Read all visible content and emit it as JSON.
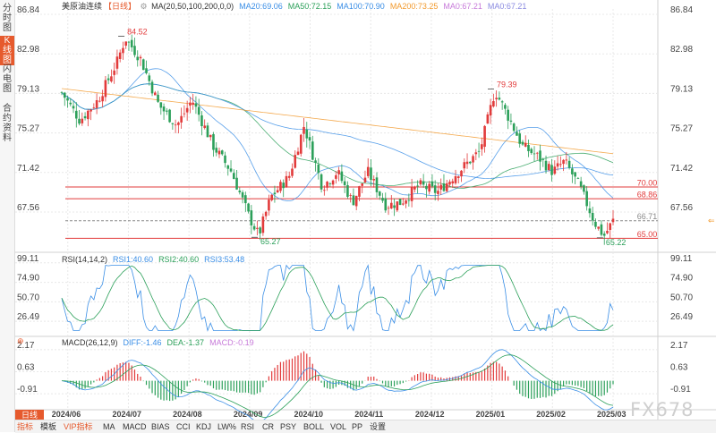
{
  "sidebar": {
    "tabs": [
      {
        "label": "分时图",
        "active": false
      },
      {
        "label": "K线图",
        "active": true
      },
      {
        "label": "闪电图",
        "active": false
      },
      {
        "label": "合约资料",
        "active": false
      }
    ]
  },
  "header": {
    "name": "美原油连续",
    "period": "日线",
    "ma_label": "MA(20,50,100,200,0,0)",
    "ma_values": [
      {
        "text": "MA20:69.06",
        "color": "#3a8ee6"
      },
      {
        "text": "MA50:72.15",
        "color": "#2ca05a"
      },
      {
        "text": "MA100:70.90",
        "color": "#3a8ee6"
      },
      {
        "text": "MA200:73.25",
        "color": "#f29a2e"
      },
      {
        "text": "MA0:67.21",
        "color": "#c77ad9"
      },
      {
        "text": "MA0:67.21",
        "color": "#8a8ae0"
      }
    ]
  },
  "rsi_header": {
    "label": "RSI(14,14,2)",
    "values": [
      {
        "text": "RSI1:40.60",
        "color": "#3a8ee6"
      },
      {
        "text": "RSI2:40.60",
        "color": "#2ca05a"
      },
      {
        "text": "RSI3:53.48",
        "color": "#3a8ee6"
      }
    ]
  },
  "macd_header": {
    "label": "MACD(26,12,9)",
    "values": [
      {
        "text": "DIFF:-1.46",
        "color": "#3a8ee6"
      },
      {
        "text": "DEA:-1.37",
        "color": "#2ca05a"
      },
      {
        "text": "MACD:-0.19",
        "color": "#c77ad9"
      }
    ]
  },
  "chart_data": {
    "type": "candlestick",
    "title": "美原油连续 日线",
    "price_axis_ticks": [
      "86.84",
      "82.98",
      "79.13",
      "75.27",
      "71.42",
      "67.56"
    ],
    "ylim": [
      64.0,
      86.84
    ],
    "x_tick_labels": [
      "2024/06",
      "2024/07",
      "2024/08",
      "2024/09",
      "2024/10",
      "2024/11",
      "2024/12",
      "2025/01",
      "2025/02",
      "2025/03"
    ],
    "price_anchors": [
      {
        "m": 0.0,
        "v": 79.2
      },
      {
        "m": 0.3,
        "v": 76.5
      },
      {
        "m": 0.6,
        "v": 78.5
      },
      {
        "m": 0.9,
        "v": 82.0
      },
      {
        "m": 1.05,
        "v": 84.52
      },
      {
        "m": 1.3,
        "v": 82.5
      },
      {
        "m": 1.6,
        "v": 78.0
      },
      {
        "m": 1.9,
        "v": 76.0
      },
      {
        "m": 2.15,
        "v": 78.5
      },
      {
        "m": 2.5,
        "v": 74.0
      },
      {
        "m": 2.8,
        "v": 71.5
      },
      {
        "m": 3.1,
        "v": 67.0
      },
      {
        "m": 3.25,
        "v": 65.27
      },
      {
        "m": 3.45,
        "v": 69.0
      },
      {
        "m": 3.75,
        "v": 71.0
      },
      {
        "m": 4.0,
        "v": 76.0
      },
      {
        "m": 4.3,
        "v": 70.0
      },
      {
        "m": 4.55,
        "v": 71.5
      },
      {
        "m": 4.8,
        "v": 68.5
      },
      {
        "m": 5.05,
        "v": 71.5
      },
      {
        "m": 5.35,
        "v": 68.2
      },
      {
        "m": 5.6,
        "v": 68.5
      },
      {
        "m": 5.9,
        "v": 70.2
      },
      {
        "m": 6.2,
        "v": 69.5
      },
      {
        "m": 6.6,
        "v": 71.8
      },
      {
        "m": 6.9,
        "v": 73.5
      },
      {
        "m": 7.15,
        "v": 79.39
      },
      {
        "m": 7.4,
        "v": 76.5
      },
      {
        "m": 7.6,
        "v": 74.0
      },
      {
        "m": 7.85,
        "v": 73.0
      },
      {
        "m": 8.1,
        "v": 71.5
      },
      {
        "m": 8.3,
        "v": 72.5
      },
      {
        "m": 8.55,
        "v": 70.0
      },
      {
        "m": 8.8,
        "v": 66.5
      },
      {
        "m": 8.95,
        "v": 65.22
      },
      {
        "m": 9.1,
        "v": 66.71
      }
    ],
    "horizontal_levels": [
      {
        "label": "70.00",
        "value": 70.0,
        "color": "#e23b3b",
        "style": "solid"
      },
      {
        "label": "68.86",
        "value": 68.86,
        "color": "#e23b3b",
        "style": "solid"
      },
      {
        "label": "66.71",
        "value": 66.71,
        "color": "#888888",
        "style": "dashed"
      },
      {
        "label": "65.00",
        "value": 65.0,
        "color": "#e23b3b",
        "style": "solid"
      }
    ],
    "annotations": [
      {
        "label": "84.52",
        "m": 1.05,
        "value": 84.52,
        "color": "#e23b3b",
        "pos": "above"
      },
      {
        "label": "79.39",
        "m": 7.15,
        "value": 79.39,
        "color": "#e23b3b",
        "pos": "above"
      },
      {
        "label": "65.27",
        "m": 3.25,
        "value": 65.27,
        "color": "#2ca05a",
        "pos": "below"
      },
      {
        "label": "65.22",
        "m": 8.95,
        "value": 65.22,
        "color": "#2ca05a",
        "pos": "below"
      }
    ],
    "moving_averages": [
      {
        "name": "MA20",
        "last": 69.06,
        "color": "#3a8ee6"
      },
      {
        "name": "MA50",
        "last": 72.15,
        "color": "#2ca05a"
      },
      {
        "name": "MA100",
        "last": 70.9,
        "color": "#3a8ee6"
      },
      {
        "name": "MA200",
        "last": 73.25,
        "color": "#f29a2e"
      }
    ],
    "rsi": {
      "ticks": [
        "99.11",
        "74.90",
        "50.70",
        "26.49"
      ],
      "ylim": [
        10,
        100
      ],
      "rsi1": 40.6,
      "rsi2": 40.6,
      "rsi3": 53.48
    },
    "macd": {
      "ticks": [
        "2.17",
        "0.63",
        "-0.91"
      ],
      "ylim": [
        -1.9,
        2.6
      ],
      "diff": -1.46,
      "dea": -1.37,
      "macd": -0.19
    }
  },
  "bottom": {
    "period_tab": "日线",
    "items": [
      {
        "label": "指标",
        "hl": true
      },
      {
        "label": "模板",
        "hl": false
      },
      {
        "label": "VIP指标",
        "hl": true
      },
      {
        "label": "MA",
        "hl": false
      },
      {
        "label": "MACD",
        "hl": false
      },
      {
        "label": "BIAS",
        "hl": false
      },
      {
        "label": "CCI",
        "hl": false
      },
      {
        "label": "KDJ",
        "hl": false
      },
      {
        "label": "LW%",
        "hl": false
      },
      {
        "label": "RSI",
        "hl": false
      },
      {
        "label": "CR",
        "hl": false
      },
      {
        "label": "PSY",
        "hl": false
      },
      {
        "label": "BOLL",
        "hl": false
      },
      {
        "label": "VOL",
        "hl": false
      },
      {
        "label": "PP",
        "hl": false
      },
      {
        "label": "设置",
        "hl": false
      }
    ]
  },
  "brand": "FX678",
  "colors": {
    "up": "#e23b3b",
    "down": "#2ca05a",
    "grid": "#e8e8e8",
    "accent": "#e65a2d"
  }
}
